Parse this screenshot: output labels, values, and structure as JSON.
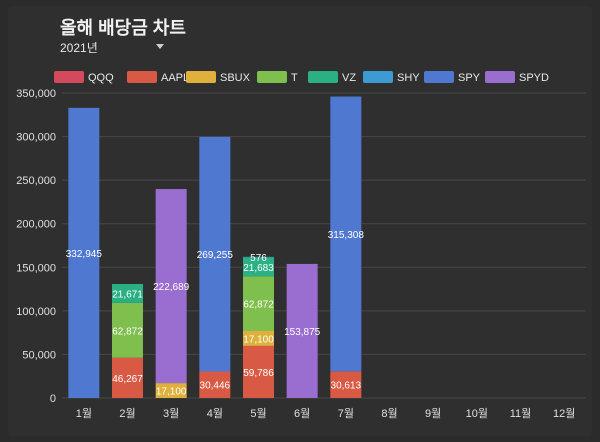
{
  "header": {
    "title": "올해 배당금 차트",
    "year_selected": "2021년"
  },
  "chart_data": {
    "type": "bar",
    "stacked": true,
    "title": "올해 배당금 차트",
    "categories": [
      "1월",
      "2월",
      "3월",
      "4월",
      "5월",
      "6월",
      "7월",
      "8월",
      "9월",
      "10월",
      "11월",
      "12월"
    ],
    "ylim": [
      0,
      350000
    ],
    "yticks": [
      0,
      50000,
      100000,
      150000,
      200000,
      250000,
      300000,
      350000
    ],
    "ytick_labels": [
      "0",
      "50,000",
      "100,000",
      "150,000",
      "200,000",
      "250,000",
      "300,000",
      "350,000"
    ],
    "grid": true,
    "legend_position": "top",
    "series": [
      {
        "name": "QQQ",
        "color": "#d44a5c",
        "values": [
          0,
          0,
          0,
          0,
          0,
          0,
          0,
          0,
          0,
          0,
          0,
          0
        ]
      },
      {
        "name": "AAPL",
        "color": "#d95a44",
        "values": [
          0,
          46267,
          0,
          30446,
          59786,
          0,
          30613,
          0,
          0,
          0,
          0,
          0
        ]
      },
      {
        "name": "SBUX",
        "color": "#dfb13c",
        "values": [
          0,
          0,
          17100,
          0,
          17100,
          0,
          0,
          0,
          0,
          0,
          0,
          0
        ]
      },
      {
        "name": "T",
        "color": "#7fbf4d",
        "values": [
          0,
          62872,
          0,
          0,
          62872,
          0,
          0,
          0,
          0,
          0,
          0,
          0
        ]
      },
      {
        "name": "VZ",
        "color": "#2bb083",
        "values": [
          0,
          21671,
          0,
          0,
          21683,
          0,
          0,
          0,
          0,
          0,
          0,
          0
        ]
      },
      {
        "name": "SHY",
        "color": "#3d9bd4",
        "values": [
          0,
          0,
          0,
          0,
          576,
          0,
          0,
          0,
          0,
          0,
          0,
          0
        ]
      },
      {
        "name": "SPY",
        "color": "#4f79d1",
        "values": [
          332945,
          0,
          0,
          269255,
          0,
          0,
          315308,
          0,
          0,
          0,
          0,
          0
        ]
      },
      {
        "name": "SPYD",
        "color": "#9a6dd0",
        "values": [
          0,
          0,
          222689,
          0,
          0,
          153875,
          0,
          0,
          0,
          0,
          0,
          0
        ]
      }
    ],
    "data_labels": [
      {
        "month": "1월",
        "series": "SPY",
        "text": "332,945"
      },
      {
        "month": "2월",
        "series": "AAPL",
        "text": "46,267"
      },
      {
        "month": "2월",
        "series": "T",
        "text": "62,872"
      },
      {
        "month": "2월",
        "series": "VZ",
        "text": "21,671"
      },
      {
        "month": "3월",
        "series": "SBUX",
        "text": "17,100"
      },
      {
        "month": "3월",
        "series": "SPYD",
        "text": "222,689"
      },
      {
        "month": "4월",
        "series": "AAPL",
        "text": "30,446"
      },
      {
        "month": "4월",
        "series": "SPY",
        "text": "269,255"
      },
      {
        "month": "5월",
        "series": "AAPL",
        "text": "59,786"
      },
      {
        "month": "5월",
        "series": "SBUX",
        "text": "17,100"
      },
      {
        "month": "5월",
        "series": "T",
        "text": "62,872"
      },
      {
        "month": "5월",
        "series": "VZ",
        "text": "21,683"
      },
      {
        "month": "5월",
        "series": "SHY",
        "text": "576"
      },
      {
        "month": "6월",
        "series": "SPYD",
        "text": "153,875"
      },
      {
        "month": "7월",
        "series": "AAPL",
        "text": "30,613"
      },
      {
        "month": "7월",
        "series": "SPY",
        "text": "315,308"
      }
    ]
  }
}
